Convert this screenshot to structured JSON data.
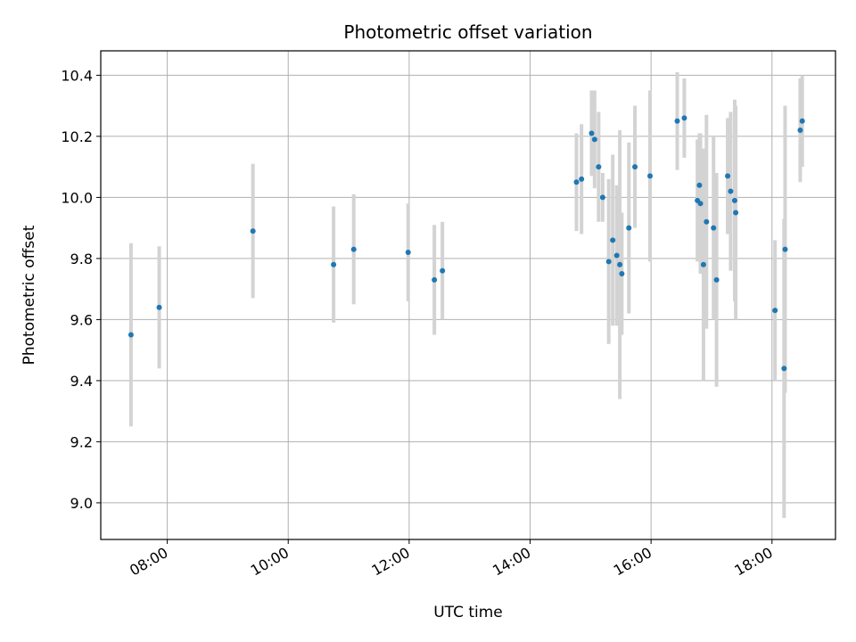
{
  "chart_data": {
    "type": "scatter",
    "title": "Photometric offset variation",
    "xlabel": "UTC time",
    "ylabel": "Photometric offset",
    "xlim_hours": [
      6.9,
      19.05
    ],
    "ylim": [
      8.88,
      10.48
    ],
    "grid": true,
    "x_ticks": [
      {
        "hour": 8,
        "label": "08:00"
      },
      {
        "hour": 10,
        "label": "10:00"
      },
      {
        "hour": 12,
        "label": "12:00"
      },
      {
        "hour": 14,
        "label": "14:00"
      },
      {
        "hour": 16,
        "label": "16:00"
      },
      {
        "hour": 18,
        "label": "18:00"
      }
    ],
    "y_ticks": [
      {
        "value": 9.0,
        "label": "9.0"
      },
      {
        "value": 9.2,
        "label": "9.2"
      },
      {
        "value": 9.4,
        "label": "9.4"
      },
      {
        "value": 9.6,
        "label": "9.6"
      },
      {
        "value": 9.8,
        "label": "9.8"
      },
      {
        "value": 10.0,
        "label": "10.0"
      },
      {
        "value": 10.2,
        "label": "10.2"
      },
      {
        "value": 10.4,
        "label": "10.4"
      }
    ],
    "point_color": "#1f77b4",
    "errorbar_color": "#d3d3d3",
    "points": [
      {
        "time": "07:24",
        "y": 9.55,
        "err": 0.3
      },
      {
        "time": "07:52",
        "y": 9.64,
        "err": 0.2
      },
      {
        "time": "09:25",
        "y": 9.89,
        "err": 0.22
      },
      {
        "time": "10:45",
        "y": 9.78,
        "err": 0.19
      },
      {
        "time": "11:05",
        "y": 9.83,
        "err": 0.18
      },
      {
        "time": "11:59",
        "y": 9.82,
        "err": 0.16
      },
      {
        "time": "12:25",
        "y": 9.73,
        "err": 0.18
      },
      {
        "time": "12:33",
        "y": 9.76,
        "err": 0.16
      },
      {
        "time": "14:46",
        "y": 10.05,
        "err": 0.16
      },
      {
        "time": "14:51",
        "y": 10.06,
        "err": 0.18
      },
      {
        "time": "15:01",
        "y": 10.21,
        "err": 0.14
      },
      {
        "time": "15:04",
        "y": 10.19,
        "err": 0.16
      },
      {
        "time": "15:08",
        "y": 10.1,
        "err": 0.18
      },
      {
        "time": "15:12",
        "y": 10.0,
        "err": 0.08
      },
      {
        "time": "15:18",
        "y": 9.79,
        "err": 0.27
      },
      {
        "time": "15:22",
        "y": 9.86,
        "err": 0.28
      },
      {
        "time": "15:26",
        "y": 9.81,
        "err": 0.23
      },
      {
        "time": "15:29",
        "y": 9.78,
        "err": 0.44
      },
      {
        "time": "15:31",
        "y": 9.75,
        "err": 0.2
      },
      {
        "time": "15:38",
        "y": 9.9,
        "err": 0.28
      },
      {
        "time": "15:44",
        "y": 10.1,
        "err": 0.2
      },
      {
        "time": "15:59",
        "y": 10.07,
        "err": 0.28
      },
      {
        "time": "16:26",
        "y": 10.25,
        "err": 0.16
      },
      {
        "time": "16:33",
        "y": 10.26,
        "err": 0.13
      },
      {
        "time": "16:46",
        "y": 9.99,
        "err": 0.2
      },
      {
        "time": "16:48",
        "y": 10.04,
        "err": 0.17
      },
      {
        "time": "16:49",
        "y": 9.98,
        "err": 0.23
      },
      {
        "time": "16:52",
        "y": 9.78,
        "err": 0.38
      },
      {
        "time": "16:55",
        "y": 9.92,
        "err": 0.35
      },
      {
        "time": "17:02",
        "y": 9.9,
        "err": 0.3
      },
      {
        "time": "17:05",
        "y": 9.73,
        "err": 0.35
      },
      {
        "time": "17:16",
        "y": 10.07,
        "err": 0.19
      },
      {
        "time": "17:19",
        "y": 10.02,
        "err": 0.26
      },
      {
        "time": "17:23",
        "y": 9.99,
        "err": 0.33
      },
      {
        "time": "17:24",
        "y": 9.95,
        "err": 0.35
      },
      {
        "time": "18:03",
        "y": 9.63,
        "err": 0.23
      },
      {
        "time": "18:12",
        "y": 9.44,
        "err": 0.49
      },
      {
        "time": "18:13",
        "y": 9.83,
        "err": 0.47
      },
      {
        "time": "18:28",
        "y": 10.22,
        "err": 0.17
      },
      {
        "time": "18:30",
        "y": 10.25,
        "err": 0.15
      }
    ]
  }
}
